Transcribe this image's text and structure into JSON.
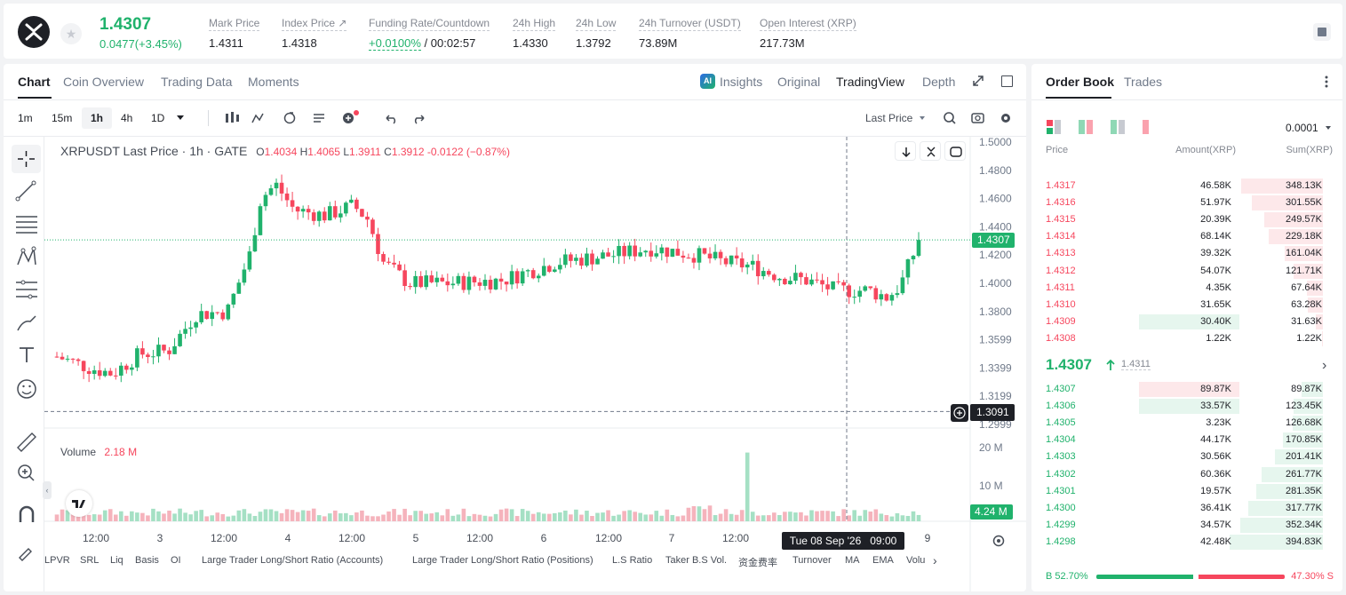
{
  "header": {
    "price": "1.4307",
    "change": "0.0477(+3.45%)",
    "stats": [
      {
        "label": "Mark Price",
        "value": "1.4311"
      },
      {
        "label": "Index Price ↗",
        "value": "1.4318"
      },
      {
        "label": "Funding Rate/Countdown",
        "value": "+0.0100%",
        "value2": " / 00:02:57"
      },
      {
        "label": "24h High",
        "value": "1.4330"
      },
      {
        "label": "24h Low",
        "value": "1.3792"
      },
      {
        "label": "24h Turnover (USDT)",
        "value": "73.89M"
      },
      {
        "label": "Open Interest (XRP)",
        "value": "217.73M"
      }
    ]
  },
  "chart_tabs": [
    "Chart",
    "Coin Overview",
    "Trading Data",
    "Moments"
  ],
  "chart_views": [
    "Insights",
    "Original",
    "TradingView",
    "Depth"
  ],
  "intervals": [
    "1m",
    "15m",
    "1h",
    "4h",
    "1D"
  ],
  "price_source": "Last Price",
  "legend": {
    "symbol": "XRPUSDT Last Price · 1h · GATE",
    "o_label": "O",
    "o": "1.4034",
    "h_label": "H",
    "h": "1.4065",
    "l_label": "L",
    "l": "1.3911",
    "c_label": "C",
    "c": "1.3912",
    "change": "-0.0122 (−0.87%)"
  },
  "volume_legend": {
    "label": "Volume",
    "value": "2.18 M"
  },
  "price_axis": [
    "1.5000",
    "1.4800",
    "1.4600",
    "1.4400",
    "1.4200",
    "1.4000",
    "1.3800",
    "1.3599",
    "1.3399",
    "1.3199",
    "1.2999"
  ],
  "current_price_tag": "1.4307",
  "crosshair_price_tag": "1.3091",
  "volume_axis": [
    "20 M",
    "10 M"
  ],
  "volume_tag": "4.24 M",
  "time_axis": [
    "12:00",
    "3",
    "12:00",
    "4",
    "12:00",
    "5",
    "12:00",
    "6",
    "12:00",
    "7",
    "12:00",
    "9"
  ],
  "crosshair_time": "Tue 08 Sep '26   09:00",
  "indicators": [
    "LPVR",
    "SRL",
    "Liq",
    "Basis",
    "OI",
    "Large Trader Long/Short Ratio (Accounts)",
    "Large Trader Long/Short Ratio (Positions)",
    "L.S Ratio",
    "Taker B.S Vol.",
    "资金费率",
    "Turnover",
    "MA",
    "EMA",
    "Volu"
  ],
  "chart_data": {
    "type": "candlestick",
    "symbol": "XRPUSDT",
    "interval": "1h",
    "ylim": [
      1.2999,
      1.5
    ],
    "current_price": 1.4307,
    "volume_ylim": [
      0,
      20000000
    ]
  },
  "orderbook": {
    "tabs": [
      "Order Book",
      "Trades"
    ],
    "precision": "0.0001",
    "headers": [
      "Price",
      "Amount(XRP)",
      "Sum(XRP)"
    ],
    "asks": [
      {
        "price": "1.4317",
        "amount": "46.58K",
        "sum": "348.13K",
        "depth": 0.88,
        "amt_bar": 0
      },
      {
        "price": "1.4316",
        "amount": "51.97K",
        "sum": "301.55K",
        "depth": 0.76,
        "amt_bar": 0
      },
      {
        "price": "1.4315",
        "amount": "20.39K",
        "sum": "249.57K",
        "depth": 0.63,
        "amt_bar": 0
      },
      {
        "price": "1.4314",
        "amount": "68.14K",
        "sum": "229.18K",
        "depth": 0.58,
        "amt_bar": 0
      },
      {
        "price": "1.4313",
        "amount": "39.32K",
        "sum": "161.04K",
        "depth": 0.41,
        "amt_bar": 0
      },
      {
        "price": "1.4312",
        "amount": "54.07K",
        "sum": "121.71K",
        "depth": 0.31,
        "amt_bar": 0
      },
      {
        "price": "1.4311",
        "amount": "4.35K",
        "sum": "67.64K",
        "depth": 0.17,
        "amt_bar": 0
      },
      {
        "price": "1.4310",
        "amount": "31.65K",
        "sum": "63.28K",
        "depth": 0.16,
        "amt_bar": 0
      },
      {
        "price": "1.4309",
        "amount": "30.40K",
        "sum": "31.63K",
        "depth": 0.08,
        "amt_bar": 1
      },
      {
        "price": "1.4308",
        "amount": "1.22K",
        "sum": "1.22K",
        "depth": 0.01,
        "amt_bar": 0
      }
    ],
    "last_price": "1.4307",
    "mark_price": "1.4311",
    "bids": [
      {
        "price": "1.4307",
        "amount": "89.87K",
        "sum": "89.87K",
        "depth": 0.23,
        "amt_bar": 1
      },
      {
        "price": "1.4306",
        "amount": "33.57K",
        "sum": "123.45K",
        "depth": 0.31,
        "amt_bar": 1
      },
      {
        "price": "1.4305",
        "amount": "3.23K",
        "sum": "126.68K",
        "depth": 0.32,
        "amt_bar": 0
      },
      {
        "price": "1.4304",
        "amount": "44.17K",
        "sum": "170.85K",
        "depth": 0.43,
        "amt_bar": 0
      },
      {
        "price": "1.4303",
        "amount": "30.56K",
        "sum": "201.41K",
        "depth": 0.51,
        "amt_bar": 0
      },
      {
        "price": "1.4302",
        "amount": "60.36K",
        "sum": "261.77K",
        "depth": 0.66,
        "amt_bar": 0
      },
      {
        "price": "1.4301",
        "amount": "19.57K",
        "sum": "281.35K",
        "depth": 0.71,
        "amt_bar": 0
      },
      {
        "price": "1.4300",
        "amount": "36.41K",
        "sum": "317.77K",
        "depth": 0.8,
        "amt_bar": 0
      },
      {
        "price": "1.4299",
        "amount": "34.57K",
        "sum": "352.34K",
        "depth": 0.89,
        "amt_bar": 0
      },
      {
        "price": "1.4298",
        "amount": "42.48K",
        "sum": "394.83K",
        "depth": 1.0,
        "amt_bar": 0
      }
    ],
    "buy_ratio": "B 52.70%",
    "sell_ratio": "47.30% S",
    "buy_fraction": 0.527
  }
}
